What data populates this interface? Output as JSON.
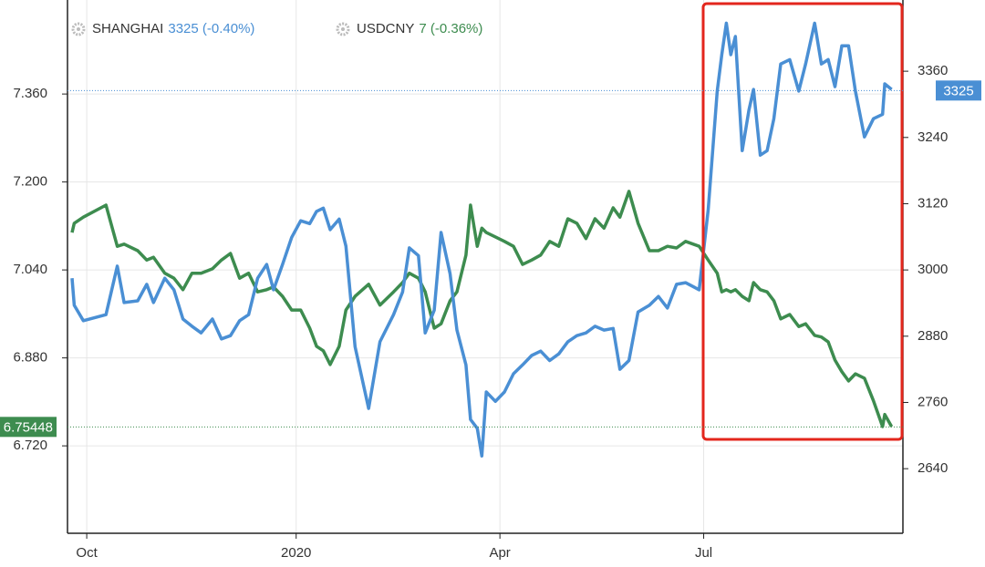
{
  "chart_data": {
    "type": "line",
    "x": [
      2,
      3,
      7,
      17,
      22,
      25,
      31,
      35,
      38,
      43,
      47,
      51,
      55,
      59,
      64,
      68,
      72,
      76,
      80,
      84,
      88,
      91,
      95,
      99,
      103,
      107,
      110,
      113,
      116,
      120,
      123,
      127,
      133,
      138,
      144,
      148,
      151,
      155,
      158,
      162,
      165,
      169,
      172,
      176,
      178,
      181,
      183,
      185,
      189,
      193,
      197,
      201,
      205,
      209,
      213,
      217,
      221,
      225,
      229,
      233,
      237,
      241,
      244,
      248,
      252,
      257,
      261,
      265,
      269,
      273,
      279,
      283,
      287,
      289,
      291,
      293,
      295,
      298,
      301,
      303,
      306,
      309,
      312,
      315,
      319,
      323,
      326,
      330,
      333,
      336,
      339,
      342,
      345,
      348,
      352,
      356,
      360,
      361,
      364
    ],
    "xlim": [
      0,
      369
    ],
    "xticks": [
      {
        "value": 8.5,
        "label": "Oct"
      },
      {
        "value": 101,
        "label": "2020"
      },
      {
        "value": 191,
        "label": "Apr"
      },
      {
        "value": 281,
        "label": "Jul"
      }
    ],
    "ylim": [
      6.561,
      7.531
    ],
    "yticks": [
      {
        "value": 7.36,
        "label": "7.360"
      },
      {
        "value": 7.2,
        "label": "7.200"
      },
      {
        "value": 7.04,
        "label": "7.040"
      },
      {
        "value": 6.88,
        "label": "6.880"
      },
      {
        "value": 6.72,
        "label": "6.720"
      }
    ],
    "y2lim": [
      2523,
      3489
    ],
    "y2ticks": [
      3360,
      3240,
      3120,
      3000,
      2880,
      2760,
      2640
    ],
    "grid": true,
    "series": [
      {
        "name": "SHANGHAI",
        "legend_value": "3325 (-0.40%)",
        "last_price": 3325,
        "color": "#4a8fd4",
        "axis": "y2",
        "values": [
          2985,
          2936,
          2908,
          2919,
          3007,
          2941,
          2944,
          2974,
          2941,
          2985,
          2964,
          2911,
          2898,
          2886,
          2911,
          2875,
          2881,
          2908,
          2919,
          2985,
          3010,
          2964,
          3010,
          3059,
          3089,
          3084,
          3106,
          3112,
          3073,
          3092,
          3043,
          2861,
          2749,
          2870,
          2919,
          2960,
          3040,
          3026,
          2886,
          2927,
          3068,
          2993,
          2891,
          2828,
          2729,
          2713,
          2663,
          2779,
          2762,
          2779,
          2812,
          2828,
          2845,
          2853,
          2836,
          2848,
          2870,
          2881,
          2886,
          2898,
          2891,
          2894,
          2820,
          2836,
          2924,
          2936,
          2952,
          2931,
          2974,
          2977,
          2964,
          3109,
          3324,
          3390,
          3447,
          3390,
          3423,
          3216,
          3290,
          3327,
          3208,
          3216,
          3274,
          3373,
          3381,
          3324,
          3373,
          3447,
          3373,
          3381,
          3332,
          3406,
          3406,
          3324,
          3241,
          3274,
          3282,
          3337,
          3327
        ]
      },
      {
        "name": "USDCNY",
        "legend_value": "7 (-0.36%)",
        "last_price": 6.75448,
        "color": "#3d8c4f",
        "axis": "y",
        "values": [
          7.108,
          7.125,
          7.136,
          7.158,
          7.083,
          7.087,
          7.075,
          7.058,
          7.063,
          7.034,
          7.025,
          7.004,
          7.034,
          7.034,
          7.042,
          7.058,
          7.07,
          7.025,
          7.034,
          7.0,
          7.004,
          7.009,
          6.992,
          6.967,
          6.967,
          6.934,
          6.901,
          6.893,
          6.868,
          6.901,
          6.967,
          6.992,
          7.014,
          6.976,
          7.0,
          7.017,
          7.034,
          7.025,
          7.0,
          6.934,
          6.942,
          6.984,
          7.0,
          7.067,
          7.158,
          7.083,
          7.116,
          7.108,
          7.1,
          7.092,
          7.083,
          7.05,
          7.058,
          7.067,
          7.092,
          7.083,
          7.133,
          7.125,
          7.097,
          7.133,
          7.116,
          7.153,
          7.136,
          7.183,
          7.125,
          7.075,
          7.075,
          7.083,
          7.08,
          7.092,
          7.083,
          7.058,
          7.034,
          7.0,
          7.004,
          7.0,
          7.004,
          6.992,
          6.984,
          7.017,
          7.004,
          7.0,
          6.984,
          6.951,
          6.959,
          6.937,
          6.942,
          6.921,
          6.918,
          6.909,
          6.876,
          6.855,
          6.838,
          6.851,
          6.843,
          6.802,
          6.755,
          6.777,
          6.755
        ]
      }
    ]
  }
}
